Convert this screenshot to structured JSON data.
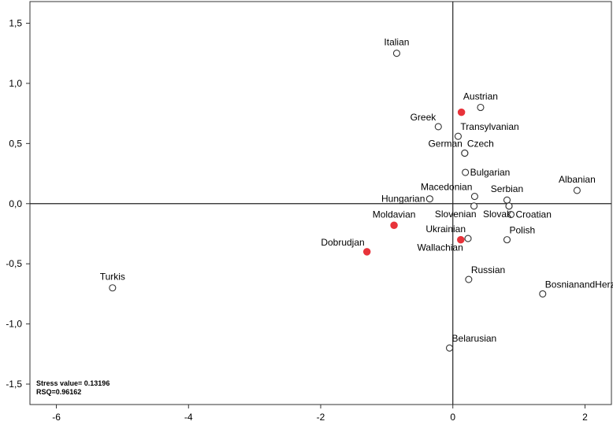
{
  "chart_data": {
    "type": "scatter",
    "title": "",
    "xlabel": "",
    "ylabel": "",
    "xlim": [
      -6.4,
      2.4
    ],
    "ylim": [
      -1.67,
      1.68
    ],
    "x_ticks": [
      -6,
      -4,
      -2,
      0,
      2
    ],
    "x_tick_labels": [
      "-6",
      "-4",
      "-2",
      "0",
      "2"
    ],
    "y_ticks": [
      -1.5,
      -1.0,
      -0.5,
      0.0,
      0.5,
      1.0,
      1.5
    ],
    "y_tick_labels": [
      "-1,5",
      "-1,0",
      "-0,5",
      "0,0",
      "0,5",
      "1,0",
      "1,5"
    ],
    "grid": false,
    "reference_lines": {
      "x": 0,
      "y": 0
    },
    "colors": {
      "hollow_marker": "#ffffff",
      "marker_outline": "#333333",
      "filled_marker": "#e8333a"
    },
    "points": [
      {
        "label": "Italian",
        "x": -0.85,
        "y": 1.25,
        "filled": false,
        "label_pos": "above"
      },
      {
        "label": "Austrian",
        "x": 0.42,
        "y": 0.8,
        "filled": false,
        "label_pos": "above"
      },
      {
        "label": "",
        "x": 0.13,
        "y": 0.76,
        "filled": true,
        "label_pos": "none"
      },
      {
        "label": "Greek",
        "x": -0.22,
        "y": 0.64,
        "filled": false,
        "label_pos": "above-left"
      },
      {
        "label": "Transylvanian",
        "x": 0.08,
        "y": 0.56,
        "filled": false,
        "label_pos": "above-right"
      },
      {
        "label": "German",
        "x": 0.18,
        "y": 0.42,
        "filled": false,
        "label_pos": "above-left"
      },
      {
        "label": "Czech",
        "x": 0.18,
        "y": 0.42,
        "filled": false,
        "label_pos": "above-right"
      },
      {
        "label": "Bulgarian",
        "x": 0.19,
        "y": 0.26,
        "filled": false,
        "label_pos": "right"
      },
      {
        "label": "Albanian",
        "x": 1.88,
        "y": 0.11,
        "filled": false,
        "label_pos": "above"
      },
      {
        "label": "Macedonian",
        "x": 0.33,
        "y": 0.06,
        "filled": false,
        "label_pos": "above-left"
      },
      {
        "label": "Serbian",
        "x": 0.82,
        "y": 0.03,
        "filled": false,
        "label_pos": "above"
      },
      {
        "label": "Hungarian",
        "x": -0.35,
        "y": 0.04,
        "filled": false,
        "label_pos": "left"
      },
      {
        "label": "Slovenian",
        "x": 0.32,
        "y": -0.02,
        "filled": false,
        "label_pos": "below-left"
      },
      {
        "label": "",
        "x": 0.85,
        "y": -0.02,
        "filled": false,
        "label_pos": "none"
      },
      {
        "label": "Slovak",
        "x": 0.85,
        "y": -0.02,
        "filled": false,
        "label_pos": "below-left"
      },
      {
        "label": "Croatian",
        "x": 0.88,
        "y": -0.09,
        "filled": false,
        "label_pos": "right"
      },
      {
        "label": "Moldavian",
        "x": -0.89,
        "y": -0.18,
        "filled": true,
        "label_pos": "above"
      },
      {
        "label": "Ukrainian",
        "x": 0.23,
        "y": -0.29,
        "filled": false,
        "label_pos": "above-left"
      },
      {
        "label": "",
        "x": 0.12,
        "y": -0.3,
        "filled": true,
        "label_pos": "none"
      },
      {
        "label": "Wallachian",
        "x": 0.12,
        "y": -0.3,
        "filled": false,
        "label_pos": "below-left",
        "marker": false
      },
      {
        "label": "Polish",
        "x": 0.82,
        "y": -0.3,
        "filled": false,
        "label_pos": "above-right"
      },
      {
        "label": "Dobrudjan",
        "x": -1.3,
        "y": -0.4,
        "filled": true,
        "label_pos": "above-left"
      },
      {
        "label": "Russian",
        "x": 0.24,
        "y": -0.63,
        "filled": false,
        "label_pos": "above-right"
      },
      {
        "label": "BosnianandHerzegovinian",
        "x": 1.36,
        "y": -0.75,
        "filled": false,
        "label_pos": "above-right"
      },
      {
        "label": "Turkis",
        "x": -5.15,
        "y": -0.7,
        "filled": false,
        "label_pos": "above"
      },
      {
        "label": "Belarusian",
        "x": -0.05,
        "y": -1.2,
        "filled": false,
        "label_pos": "above-right"
      }
    ],
    "annotations": [
      "Stress value= 0.13196",
      "RSQ=0.96162"
    ]
  }
}
